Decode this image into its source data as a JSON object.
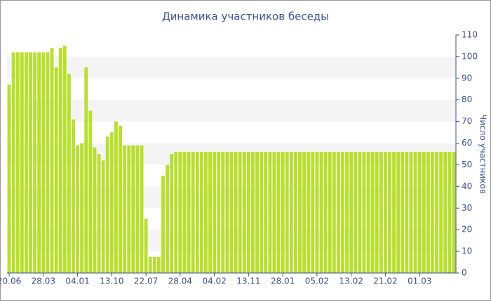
{
  "chart_data": {
    "type": "bar",
    "title": "Динамика участников беседы",
    "y_label": "Число участников",
    "categories": [
      "20.06",
      null,
      null,
      null,
      null,
      null,
      null,
      null,
      "28.03",
      null,
      null,
      null,
      null,
      null,
      null,
      null,
      "04.01",
      null,
      null,
      null,
      null,
      null,
      null,
      null,
      "13.10",
      null,
      null,
      null,
      null,
      null,
      null,
      null,
      "22.07",
      null,
      null,
      null,
      null,
      null,
      null,
      null,
      "28.04",
      null,
      null,
      null,
      null,
      null,
      null,
      null,
      "04.02",
      null,
      null,
      null,
      null,
      null,
      null,
      null,
      "13.11",
      null,
      null,
      null,
      null,
      null,
      null,
      null,
      "28.01",
      null,
      null,
      null,
      null,
      null,
      null,
      null,
      "05.02",
      null,
      null,
      null,
      null,
      null,
      null,
      null,
      "13.02",
      null,
      null,
      null,
      null,
      null,
      null,
      null,
      "21.02",
      null,
      null,
      null,
      null,
      null,
      null,
      null,
      "01.03",
      null,
      null,
      null,
      null,
      null,
      null,
      null,
      null
    ],
    "values": [
      87,
      102,
      102,
      102,
      102,
      102,
      102,
      102,
      102,
      102,
      104,
      95,
      104,
      105,
      92,
      71,
      59,
      60,
      95,
      75,
      58,
      55,
      52,
      63,
      65,
      70,
      68,
      59,
      59,
      59,
      59,
      59,
      25,
      7.5,
      7.5,
      7.5,
      45,
      50,
      55,
      56,
      56,
      56,
      56,
      56,
      56,
      56,
      56,
      56,
      56,
      56,
      56,
      56,
      56,
      56,
      56,
      56,
      56,
      56,
      56,
      56,
      56,
      56,
      56,
      56,
      56,
      56,
      56,
      56,
      56,
      56,
      56,
      56,
      56,
      56,
      56,
      56,
      56,
      56,
      56,
      56,
      56,
      56,
      56,
      56,
      56,
      56,
      56,
      56,
      56,
      56,
      56,
      56,
      56,
      56,
      56,
      56,
      56,
      56,
      56,
      56,
      56,
      56,
      56,
      56,
      56
    ],
    "color": "#b8df2f",
    "ylim": [
      0,
      110
    ],
    "yticks": [
      0,
      10,
      20,
      30,
      40,
      50,
      60,
      70,
      80,
      90,
      100,
      110
    ],
    "grid": true
  }
}
